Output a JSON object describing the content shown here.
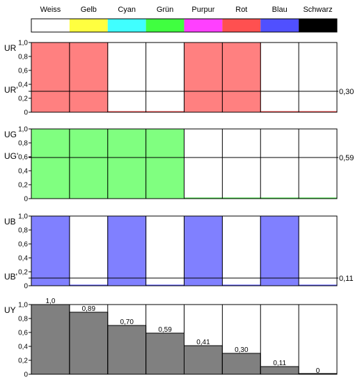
{
  "colors_row": {
    "labels": [
      "Weiss",
      "Gelb",
      "Cyan",
      "Grün",
      "Purpur",
      "Rot",
      "Blau",
      "Schwarz"
    ],
    "swatches": [
      "#ffffff",
      "#ffff40",
      "#40ffff",
      "#40ff40",
      "#ff40ff",
      "#ff5050",
      "#5050ff",
      "#000000"
    ]
  },
  "chart_data": [
    {
      "type": "bar",
      "ylabel": "UR",
      "ref_label": "UR'",
      "ref_value": 0.3,
      "ref_value_label": "0,30",
      "ylim": [
        0,
        1.0
      ],
      "yticks": [
        "0",
        "0,2",
        "0,4",
        "0,6",
        "0,8",
        "1,0"
      ],
      "categories": [
        "Weiss",
        "Gelb",
        "Cyan",
        "Grün",
        "Purpur",
        "Rot",
        "Blau",
        "Schwarz"
      ],
      "values": [
        1,
        1,
        0,
        0,
        1,
        1,
        0,
        0
      ],
      "color": "#ff8080",
      "edge": "#ff5050"
    },
    {
      "type": "bar",
      "ylabel": "UG",
      "ref_label": "UG'",
      "ref_value": 0.59,
      "ref_value_label": "0,59",
      "ylim": [
        0,
        1.0
      ],
      "yticks": [
        "0",
        "0,2",
        "0,4",
        "0,6",
        "0,8",
        "1,0"
      ],
      "categories": [
        "Weiss",
        "Gelb",
        "Cyan",
        "Grün",
        "Purpur",
        "Rot",
        "Blau",
        "Schwarz"
      ],
      "values": [
        1,
        1,
        1,
        1,
        0,
        0,
        0,
        0
      ],
      "color": "#80ff80",
      "edge": "#40e040"
    },
    {
      "type": "bar",
      "ylabel": "UB",
      "ref_label": "UB'",
      "ref_value": 0.11,
      "ref_value_label": "0,11",
      "ylim": [
        0,
        1.0
      ],
      "yticks": [
        "0",
        "0,2",
        "0,4",
        "0,6",
        "0,8",
        "1,0"
      ],
      "categories": [
        "Weiss",
        "Gelb",
        "Cyan",
        "Grün",
        "Purpur",
        "Rot",
        "Blau",
        "Schwarz"
      ],
      "values": [
        1,
        0,
        1,
        0,
        1,
        0,
        1,
        0
      ],
      "color": "#8080ff",
      "edge": "#5050ff"
    },
    {
      "type": "bar",
      "ylabel": "UY",
      "ylim": [
        0,
        1.0
      ],
      "yticks": [
        "0",
        "0,2",
        "0,4",
        "0,6",
        "0,8",
        "1,0"
      ],
      "categories": [
        "Weiss",
        "Gelb",
        "Cyan",
        "Grün",
        "Purpur",
        "Rot",
        "Blau",
        "Schwarz"
      ],
      "values": [
        1.0,
        0.89,
        0.7,
        0.59,
        0.41,
        0.3,
        0.11,
        0
      ],
      "value_labels": [
        "1,0",
        "0,89",
        "0,70",
        "0,59",
        "0,41",
        "0,30",
        "0,11",
        "0"
      ],
      "color": "#808080",
      "edge": "#000000"
    }
  ]
}
